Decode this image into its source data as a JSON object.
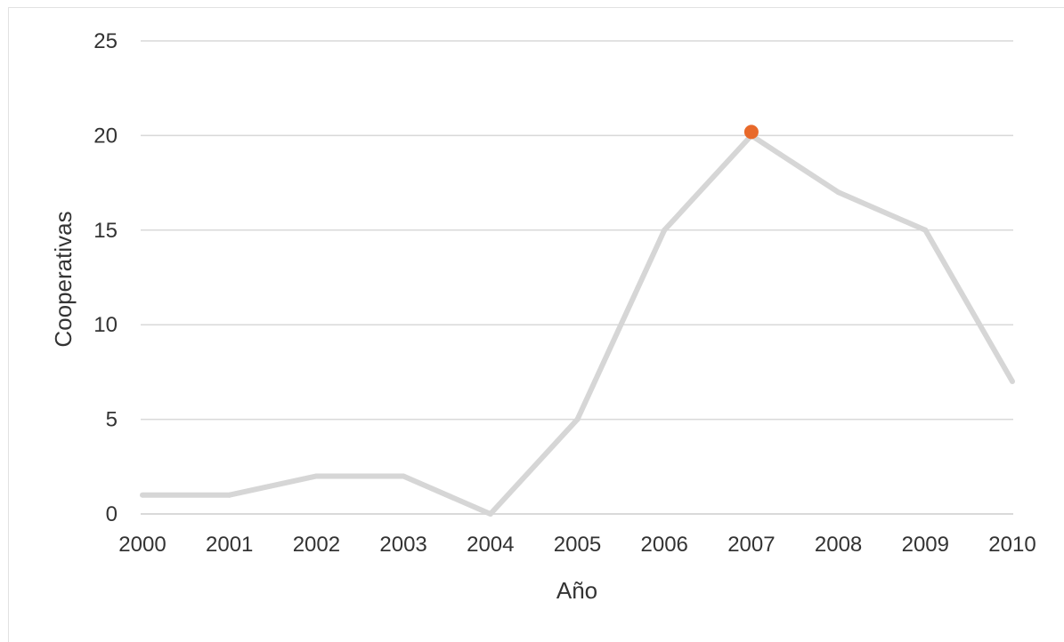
{
  "chart_data": {
    "type": "line",
    "title": "",
    "xlabel": "Año",
    "ylabel": "Cooperativas",
    "x": [
      "2000",
      "2001",
      "2002",
      "2003",
      "2004",
      "2005",
      "2006",
      "2007",
      "2008",
      "2009",
      "2010"
    ],
    "series": [
      {
        "values": [
          1,
          1,
          2,
          2,
          0,
          5,
          15,
          20,
          17,
          15,
          7
        ],
        "color": "#d6d6d6"
      }
    ],
    "highlight": {
      "x": "2007",
      "y": 20,
      "color": "#e8692a"
    },
    "ylim": [
      0,
      25
    ],
    "yticks": [
      "0",
      "5",
      "10",
      "15",
      "20",
      "25"
    ],
    "grid": true,
    "gridline_color": "#d9d9d9",
    "legend": "none"
  }
}
